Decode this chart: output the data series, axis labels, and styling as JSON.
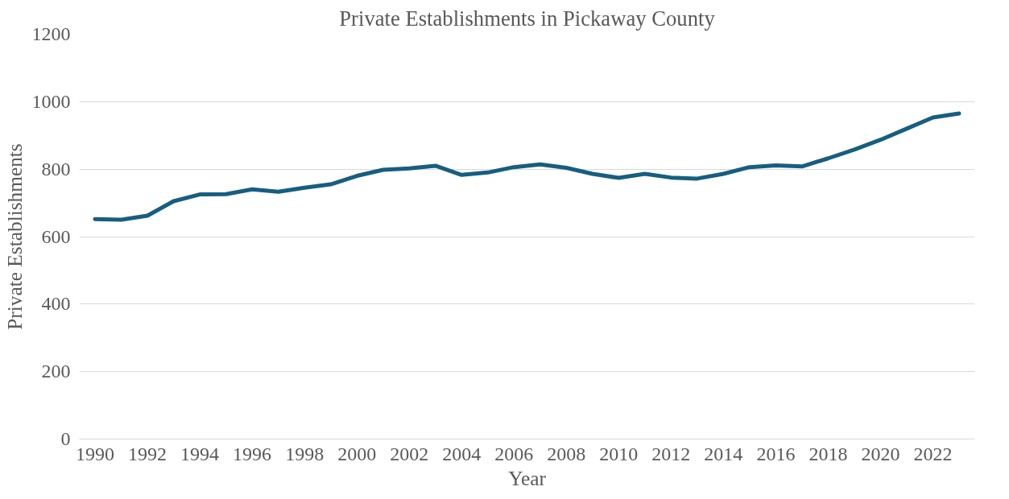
{
  "chart_data": {
    "type": "line",
    "title": "Private Establishments in Pickaway County",
    "xlabel": "Year",
    "ylabel": "Private Establishments",
    "x": [
      1990,
      1991,
      1992,
      1993,
      1994,
      1995,
      1996,
      1997,
      1998,
      1999,
      2000,
      2001,
      2002,
      2003,
      2004,
      2005,
      2006,
      2007,
      2008,
      2009,
      2010,
      2011,
      2012,
      2013,
      2014,
      2015,
      2016,
      2017,
      2018,
      2019,
      2020,
      2021,
      2022,
      2023
    ],
    "series": [
      {
        "color": "#175e80",
        "values": [
          652,
          650,
          662,
          705,
          725,
          726,
          740,
          733,
          745,
          755,
          780,
          798,
          802,
          810,
          783,
          790,
          806,
          814,
          804,
          786,
          774,
          786,
          775,
          772,
          786,
          806,
          811,
          808,
          832,
          858,
          887,
          920,
          953,
          965
        ]
      }
    ],
    "xlim": [
      1989.4,
      2023.6
    ],
    "xticks": [
      1990,
      1992,
      1994,
      1996,
      1998,
      2000,
      2002,
      2004,
      2006,
      2008,
      2010,
      2012,
      2014,
      2016,
      2018,
      2020,
      2022
    ],
    "ylim": [
      0,
      1200
    ],
    "yticks": [
      0,
      200,
      400,
      600,
      800,
      1000,
      1200
    ],
    "grid": "y",
    "marker": "none",
    "line_style": "solid"
  }
}
